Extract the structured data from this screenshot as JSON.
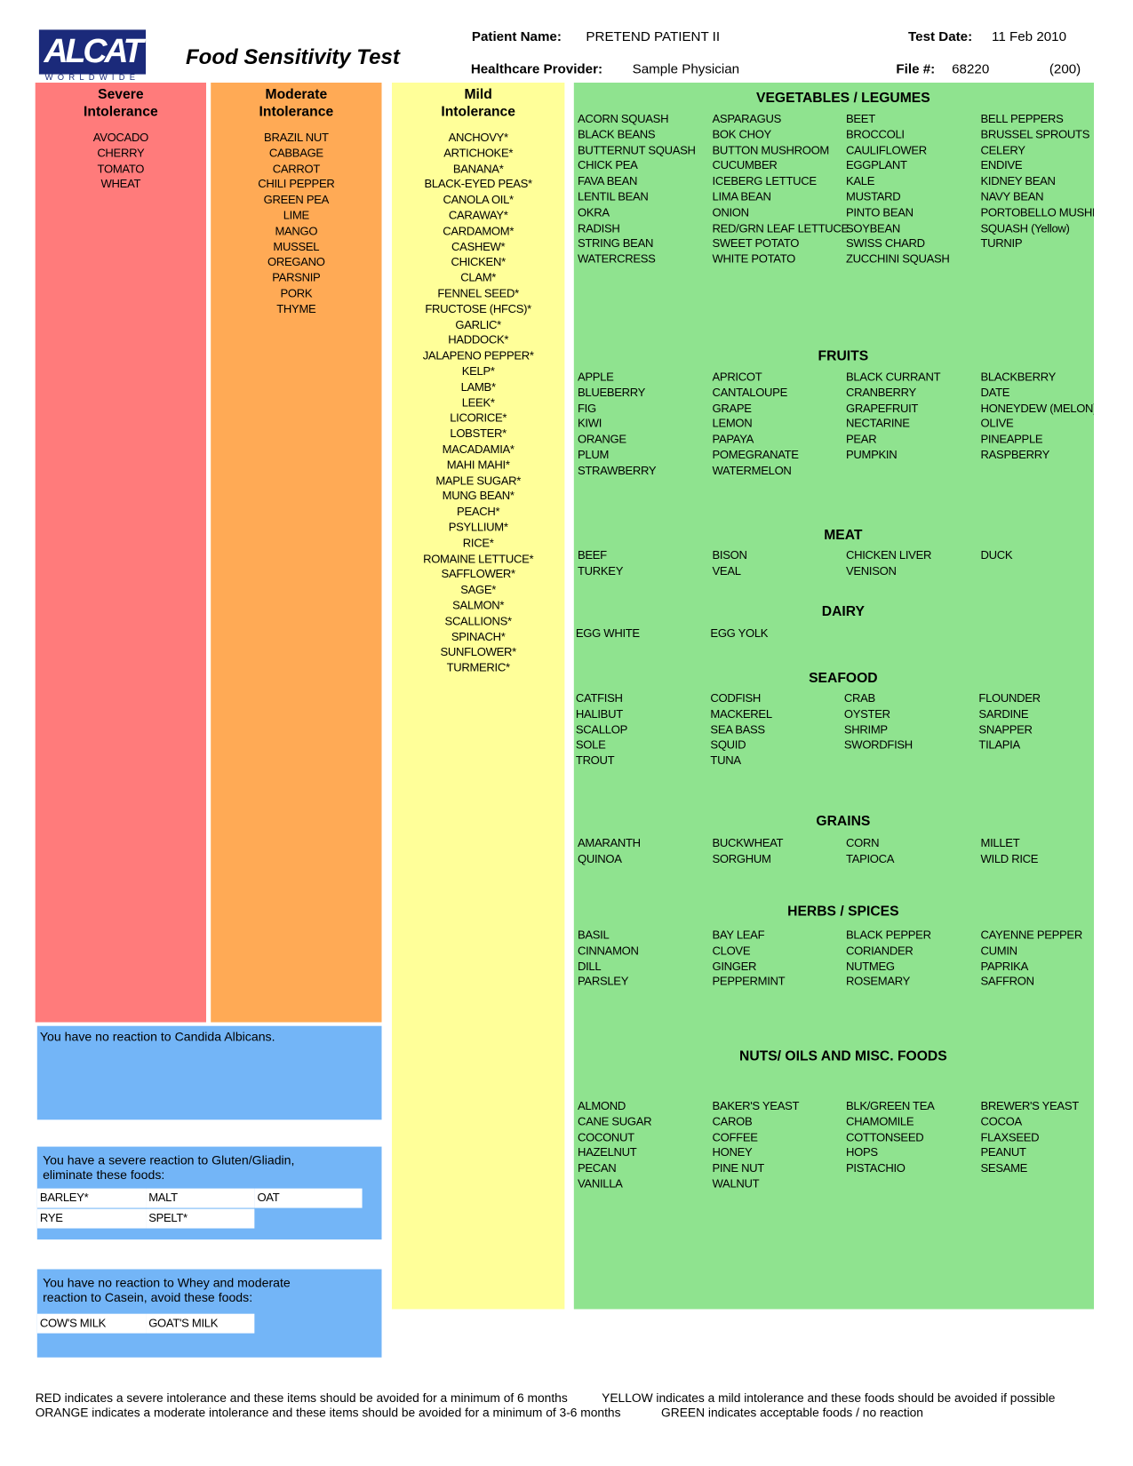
{
  "header": {
    "logo": "ALCAT",
    "logo_sub": "WORLDWIDE",
    "title": "Food Sensitivity Test",
    "patient_name_label": "Patient Name:",
    "patient_name": "PRETEND PATIENT II",
    "test_date_label": "Test Date:",
    "test_date": "11 Feb 2010",
    "provider_label": "Healthcare Provider:",
    "provider": "Sample Physician",
    "file_label": "File #:",
    "file_number": "68220",
    "file_code": "(200)"
  },
  "columns": [
    {
      "title_lines": [
        "Severe",
        "Intolerance"
      ],
      "items": [
        "AVOCADO",
        "CHERRY",
        "TOMATO",
        "WHEAT"
      ]
    },
    {
      "title_lines": [
        "Moderate",
        "Intolerance"
      ],
      "items": [
        "BRAZIL NUT",
        "CABBAGE",
        "CARROT",
        "CHILI PEPPER",
        "GREEN PEA",
        "LIME",
        "MANGO",
        "MUSSEL",
        "OREGANO",
        "PARSNIP",
        "PORK",
        "THYME"
      ]
    },
    {
      "title_lines": [
        "Mild",
        "Intolerance"
      ],
      "items": [
        "ANCHOVY*",
        "ARTICHOKE*",
        "BANANA*",
        "BLACK-EYED PEAS*",
        "CANOLA OIL*",
        "CARAWAY*",
        "CARDAMOM*",
        "CASHEW*",
        "CHICKEN*",
        "CLAM*",
        "FENNEL SEED*",
        "FRUCTOSE (HFCS)*",
        "GARLIC*",
        "HADDOCK*",
        "JALAPENO PEPPER*",
        "KELP*",
        "LAMB*",
        "LEEK*",
        "LICORICE*",
        "LOBSTER*",
        "MACADAMIA*",
        "MAHI MAHI*",
        "MAPLE SUGAR*",
        "MUNG BEAN*",
        "PEACH*",
        "PSYLLIUM*",
        "RICE*",
        "ROMAINE LETTUCE*",
        "SAFFLOWER*",
        "SAGE*",
        "SALMON*",
        "SCALLIONS*",
        "SPINACH*",
        "SUNFLOWER*",
        "TURMERIC*"
      ]
    }
  ],
  "acceptable": [
    {
      "title": "VEGETABLES / LEGUMES",
      "rows": [
        [
          "ACORN SQUASH",
          "ASPARAGUS",
          "BEET",
          "BELL PEPPERS"
        ],
        [
          "BLACK BEANS",
          "BOK CHOY",
          "BROCCOLI",
          "BRUSSEL SPROUTS"
        ],
        [
          "BUTTERNUT SQUASH",
          "BUTTON MUSHROOM",
          "CAULIFLOWER",
          "CELERY"
        ],
        [
          "CHICK PEA",
          "CUCUMBER",
          "EGGPLANT",
          "ENDIVE"
        ],
        [
          "FAVA BEAN",
          "ICEBERG LETTUCE",
          "KALE",
          "KIDNEY BEAN"
        ],
        [
          "LENTIL BEAN",
          "LIMA BEAN",
          "MUSTARD",
          "NAVY BEAN"
        ],
        [
          "OKRA",
          "ONION",
          "PINTO BEAN",
          "PORTOBELLO MUSHROOM"
        ],
        [
          "RADISH",
          "RED/GRN LEAF LETTUCE",
          "SOYBEAN",
          "SQUASH (Yellow)"
        ],
        [
          "STRING BEAN",
          "SWEET POTATO",
          "SWISS CHARD",
          "TURNIP"
        ],
        [
          "WATERCRESS",
          "WHITE POTATO",
          "ZUCCHINI SQUASH"
        ]
      ]
    },
    {
      "title": "FRUITS",
      "rows": [
        [
          "APPLE",
          "APRICOT",
          "BLACK CURRANT",
          "BLACKBERRY"
        ],
        [
          "BLUEBERRY",
          "CANTALOUPE",
          "CRANBERRY",
          "DATE"
        ],
        [
          "FIG",
          "GRAPE",
          "GRAPEFRUIT",
          "HONEYDEW (MELON)"
        ],
        [
          "KIWI",
          "LEMON",
          "NECTARINE",
          "OLIVE"
        ],
        [
          "ORANGE",
          "PAPAYA",
          "PEAR",
          "PINEAPPLE"
        ],
        [
          "PLUM",
          "POMEGRANATE",
          "PUMPKIN",
          "RASPBERRY"
        ],
        [
          "STRAWBERRY",
          "WATERMELON"
        ]
      ]
    },
    {
      "title": "MEAT",
      "rows": [
        [
          "BEEF",
          "BISON",
          "CHICKEN LIVER",
          "DUCK"
        ],
        [
          "TURKEY",
          "VEAL",
          "VENISON"
        ]
      ]
    },
    {
      "title": "DAIRY",
      "rows": [
        [
          "EGG WHITE",
          "EGG YOLK"
        ]
      ]
    },
    {
      "title": "SEAFOOD",
      "rows": [
        [
          "CATFISH",
          "CODFISH",
          "CRAB",
          "FLOUNDER"
        ],
        [
          "HALIBUT",
          "MACKEREL",
          "OYSTER",
          "SARDINE"
        ],
        [
          "SCALLOP",
          "SEA BASS",
          "SHRIMP",
          "SNAPPER"
        ],
        [
          "SOLE",
          "SQUID",
          "SWORDFISH",
          "TILAPIA"
        ],
        [
          "TROUT",
          "TUNA"
        ]
      ]
    },
    {
      "title": "GRAINS",
      "rows": [
        [
          "AMARANTH",
          "BUCKWHEAT",
          "CORN",
          "MILLET"
        ],
        [
          "QUINOA",
          "SORGHUM",
          "TAPIOCA",
          "WILD RICE"
        ]
      ]
    },
    {
      "title": "HERBS / SPICES",
      "rows": [
        [
          "BASIL",
          "BAY LEAF",
          "BLACK PEPPER",
          "CAYENNE PEPPER"
        ],
        [
          "CINNAMON",
          "CLOVE",
          "CORIANDER",
          "CUMIN"
        ],
        [
          "DILL",
          "GINGER",
          "NUTMEG",
          "PAPRIKA"
        ],
        [
          "PARSLEY",
          "PEPPERMINT",
          "ROSEMARY",
          "SAFFRON"
        ]
      ]
    },
    {
      "title": "NUTS/ OILS AND MISC. FOODS",
      "rows": [
        [
          "ALMOND",
          "BAKER'S YEAST",
          "BLK/GREEN TEA",
          "BREWER'S YEAST"
        ],
        [
          "CANE SUGAR",
          "CAROB",
          "CHAMOMILE",
          "COCOA"
        ],
        [
          "COCONUT",
          "COFFEE",
          "COTTONSEED",
          "FLAXSEED"
        ],
        [
          "HAZELNUT",
          "HONEY",
          "HOPS",
          "PEANUT"
        ],
        [
          "PECAN",
          "PINE NUT",
          "PISTACHIO",
          "SESAME"
        ],
        [
          "VANILLA",
          "WALNUT"
        ]
      ]
    }
  ],
  "boxes": [
    {
      "text": "You have no reaction to Candida Albicans."
    },
    {
      "text": "You have a severe reaction to Gluten/Gliadin, eliminate these foods:",
      "foods": [
        [
          "BARLEY*",
          "MALT",
          "OAT"
        ],
        [
          "RYE",
          "SPELT*"
        ]
      ]
    },
    {
      "text": "You have no reaction to Whey and moderate reaction to Casein, avoid these foods:",
      "foods": [
        [
          "COW'S MILK",
          "GOAT'S MILK"
        ]
      ]
    }
  ],
  "legend": [
    "RED indicates a severe intolerance and these items should be avoided for a minimum of 6 months",
    "YELLOW indicates a mild intolerance and these foods should be avoided if possible",
    "ORANGE indicates a moderate intolerance and these items should be avoided for a minimum of 3-6 months",
    "GREEN indicates acceptable foods / no reaction"
  ]
}
